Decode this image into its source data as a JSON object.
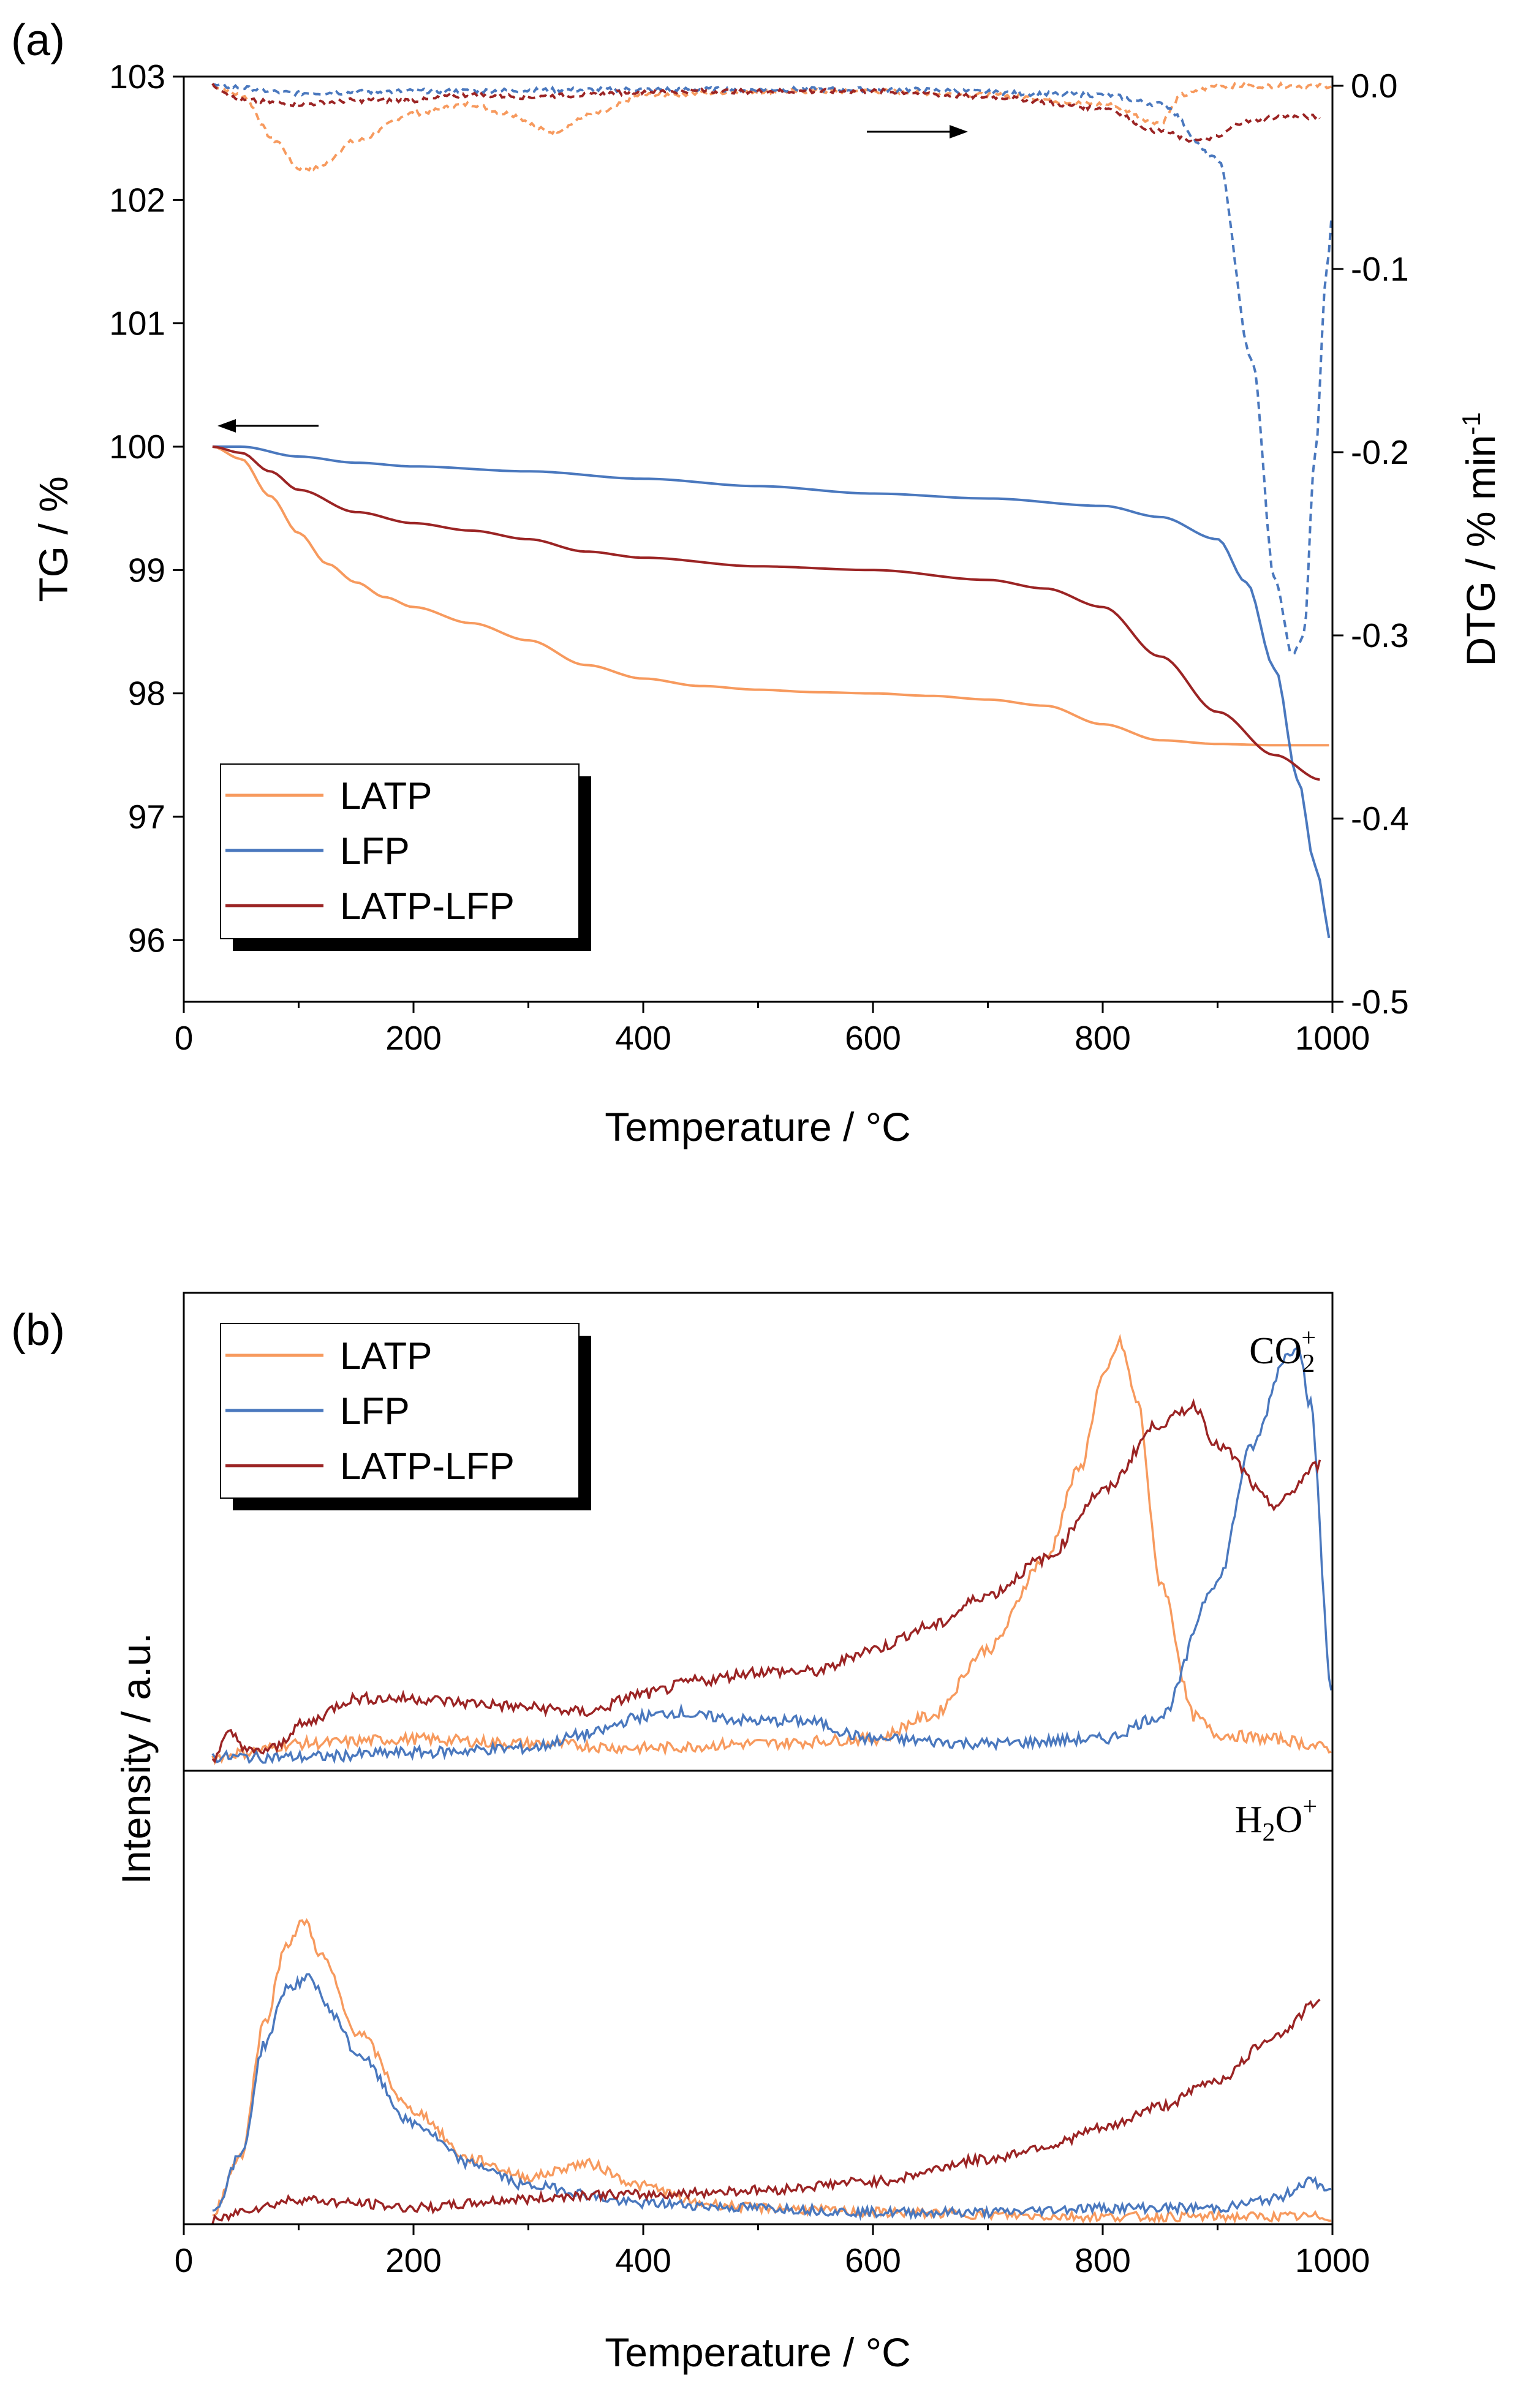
{
  "colors": {
    "latp": "#f79a5e",
    "lfp": "#4a78be",
    "latp_lfp": "#9b2424"
  },
  "chart_data": [
    {
      "panel_label": "(a)",
      "type": "line",
      "xlabel": "Temperature / °C",
      "xlim": [
        0,
        1000
      ],
      "xticks": [
        "0",
        "200",
        "400",
        "600",
        "800",
        "1000"
      ],
      "ylabel": "TG / %",
      "ylim": [
        95.5,
        103
      ],
      "yticks": [
        "96",
        "97",
        "98",
        "99",
        "100",
        "101",
        "102",
        "103"
      ],
      "y2label": "DTG / % min",
      "y2label_superscript": "-1",
      "y2lim": [
        -0.5,
        0.005
      ],
      "y2ticks": [
        "0.0",
        "-0.1",
        "-0.2",
        "-0.3",
        "-0.4",
        "-0.5"
      ],
      "legend": [
        "LATP",
        "LFP",
        "LATP-LFP"
      ],
      "legend_position": "bottom-left",
      "annotations": [
        "arrow left: TG curves on left axis",
        "arrow right: DTG curves on right axis"
      ],
      "series_tg": [
        {
          "name": "LATP",
          "color_key": "latp",
          "x": [
            25,
            50,
            75,
            100,
            125,
            150,
            175,
            200,
            250,
            300,
            350,
            400,
            450,
            500,
            550,
            600,
            650,
            700,
            750,
            800,
            850,
            900,
            950,
            1000
          ],
          "y": [
            100.0,
            99.9,
            99.6,
            99.3,
            99.05,
            98.9,
            98.78,
            98.7,
            98.57,
            98.43,
            98.23,
            98.12,
            98.06,
            98.03,
            98.01,
            98.0,
            97.98,
            97.95,
            97.9,
            97.75,
            97.62,
            97.59,
            97.58,
            97.58
          ]
        },
        {
          "name": "LFP",
          "color_key": "lfp",
          "x": [
            25,
            50,
            100,
            150,
            200,
            300,
            400,
            500,
            600,
            700,
            800,
            850,
            900,
            925,
            950,
            970,
            985,
            1000
          ],
          "y": [
            100.0,
            100.0,
            99.92,
            99.87,
            99.84,
            99.8,
            99.74,
            99.68,
            99.62,
            99.58,
            99.52,
            99.43,
            99.25,
            98.9,
            98.2,
            97.3,
            96.6,
            95.95
          ]
        },
        {
          "name": "LATP-LFP",
          "color_key": "latp_lfp",
          "x": [
            25,
            50,
            75,
            100,
            150,
            200,
            250,
            300,
            350,
            400,
            500,
            600,
            700,
            750,
            800,
            850,
            900,
            950,
            990
          ],
          "y": [
            100.0,
            99.95,
            99.8,
            99.65,
            99.47,
            99.38,
            99.32,
            99.25,
            99.15,
            99.1,
            99.03,
            99.0,
            98.92,
            98.85,
            98.7,
            98.3,
            97.85,
            97.5,
            97.3
          ]
        }
      ],
      "series_dtg": [
        {
          "name": "LATP",
          "color_key": "latp",
          "x": [
            25,
            50,
            80,
            100,
            115,
            150,
            200,
            250,
            280,
            320,
            360,
            400,
            500,
            600,
            700,
            800,
            850,
            870,
            900,
            950,
            1000
          ],
          "y": [
            0.0,
            -0.005,
            -0.03,
            -0.045,
            -0.045,
            -0.03,
            -0.015,
            -0.01,
            -0.015,
            -0.025,
            -0.015,
            -0.005,
            -0.003,
            -0.003,
            -0.005,
            -0.01,
            -0.02,
            -0.005,
            0.0,
            0.0,
            0.0
          ]
        },
        {
          "name": "LFP",
          "color_key": "lfp",
          "x": [
            25,
            100,
            200,
            400,
            600,
            800,
            850,
            900,
            930,
            950,
            965,
            975,
            985,
            995,
            1000
          ],
          "y": [
            0.0,
            -0.004,
            -0.003,
            -0.002,
            -0.002,
            -0.005,
            -0.01,
            -0.04,
            -0.15,
            -0.27,
            -0.31,
            -0.3,
            -0.2,
            -0.1,
            -0.07
          ]
        },
        {
          "name": "LATP-LFP",
          "color_key": "latp_lfp",
          "x": [
            25,
            50,
            100,
            150,
            200,
            250,
            300,
            350,
            400,
            500,
            600,
            700,
            800,
            850,
            880,
            900,
            920,
            950,
            990
          ],
          "y": [
            0.0,
            -0.008,
            -0.01,
            -0.008,
            -0.008,
            -0.005,
            -0.006,
            -0.005,
            -0.003,
            -0.003,
            -0.003,
            -0.006,
            -0.012,
            -0.025,
            -0.03,
            -0.028,
            -0.02,
            -0.017,
            -0.017
          ]
        }
      ]
    },
    {
      "panel_label": "(b)",
      "type": "line",
      "xlabel": "Temperature / °C",
      "xlim": [
        0,
        1000
      ],
      "xticks": [
        "0",
        "200",
        "400",
        "600",
        "800",
        "1000"
      ],
      "ylabel": "Intensity / a.u.",
      "legend": [
        "LATP",
        "LFP",
        "LATP-LFP"
      ],
      "legend_position": "top-left",
      "subplots": [
        {
          "label_main": "CO",
          "label_sub": "2",
          "label_sup": "+",
          "ylim": [
            0,
            1
          ],
          "series": [
            {
              "name": "LATP",
              "color_key": "latp",
              "x": [
                25,
                50,
                100,
                200,
                300,
                400,
                500,
                600,
                650,
                700,
                750,
                780,
                800,
                815,
                830,
                850,
                880,
                900,
                950,
                1000
              ],
              "y": [
                0.01,
                0.02,
                0.04,
                0.05,
                0.04,
                0.03,
                0.04,
                0.05,
                0.1,
                0.25,
                0.45,
                0.65,
                0.85,
                0.93,
                0.8,
                0.4,
                0.1,
                0.06,
                0.05,
                0.03
              ]
            },
            {
              "name": "LFP",
              "color_key": "lfp",
              "x": [
                25,
                100,
                200,
                300,
                350,
                400,
                430,
                450,
                500,
                540,
                600,
                700,
                800,
                850,
                900,
                930,
                960,
                970,
                980,
                1000
              ],
              "y": [
                0.01,
                0.01,
                0.02,
                0.03,
                0.06,
                0.1,
                0.11,
                0.1,
                0.09,
                0.09,
                0.05,
                0.04,
                0.05,
                0.1,
                0.4,
                0.7,
                0.9,
                0.93,
                0.8,
                0.15
              ]
            },
            {
              "name": "LATP-LFP",
              "color_key": "latp_lfp",
              "x": [
                25,
                40,
                60,
                80,
                100,
                150,
                200,
                250,
                300,
                350,
                400,
                450,
                500,
                550,
                600,
                650,
                700,
                750,
                800,
                850,
                880,
                900,
                950,
                990
              ],
              "y": [
                0.01,
                0.06,
                0.02,
                0.03,
                0.08,
                0.14,
                0.14,
                0.13,
                0.12,
                0.11,
                0.15,
                0.18,
                0.2,
                0.2,
                0.25,
                0.3,
                0.37,
                0.45,
                0.6,
                0.75,
                0.79,
                0.7,
                0.57,
                0.66
              ]
            }
          ]
        },
        {
          "label_main": "H",
          "label_sub": "2",
          "label_tail": "O",
          "label_sup": "+",
          "ylim": [
            0,
            1
          ],
          "series": [
            {
              "name": "LATP",
              "color_key": "latp",
              "x": [
                25,
                50,
                70,
                90,
                105,
                120,
                150,
                200,
                250,
                300,
                350,
                400,
                450,
                500,
                600,
                800,
                1000
              ],
              "y": [
                0.02,
                0.15,
                0.45,
                0.63,
                0.68,
                0.6,
                0.43,
                0.25,
                0.14,
                0.1,
                0.13,
                0.08,
                0.04,
                0.03,
                0.02,
                0.01,
                0.01
              ]
            },
            {
              "name": "LFP",
              "color_key": "lfp",
              "x": [
                25,
                50,
                70,
                90,
                110,
                130,
                150,
                200,
                250,
                300,
                400,
                500,
                600,
                700,
                800,
                900,
                950,
                980,
                1000
              ],
              "y": [
                0.02,
                0.15,
                0.4,
                0.53,
                0.55,
                0.47,
                0.38,
                0.22,
                0.13,
                0.08,
                0.04,
                0.03,
                0.02,
                0.02,
                0.03,
                0.03,
                0.05,
                0.09,
                0.07
              ]
            },
            {
              "name": "LATP-LFP",
              "color_key": "latp_lfp",
              "x": [
                25,
                60,
                100,
                150,
                200,
                300,
                350,
                400,
                500,
                600,
                700,
                750,
                800,
                850,
                900,
                950,
                990
              ],
              "y": [
                0.0,
                0.03,
                0.05,
                0.04,
                0.03,
                0.05,
                0.06,
                0.06,
                0.07,
                0.09,
                0.14,
                0.17,
                0.21,
                0.26,
                0.32,
                0.42,
                0.5
              ]
            }
          ]
        }
      ]
    }
  ]
}
